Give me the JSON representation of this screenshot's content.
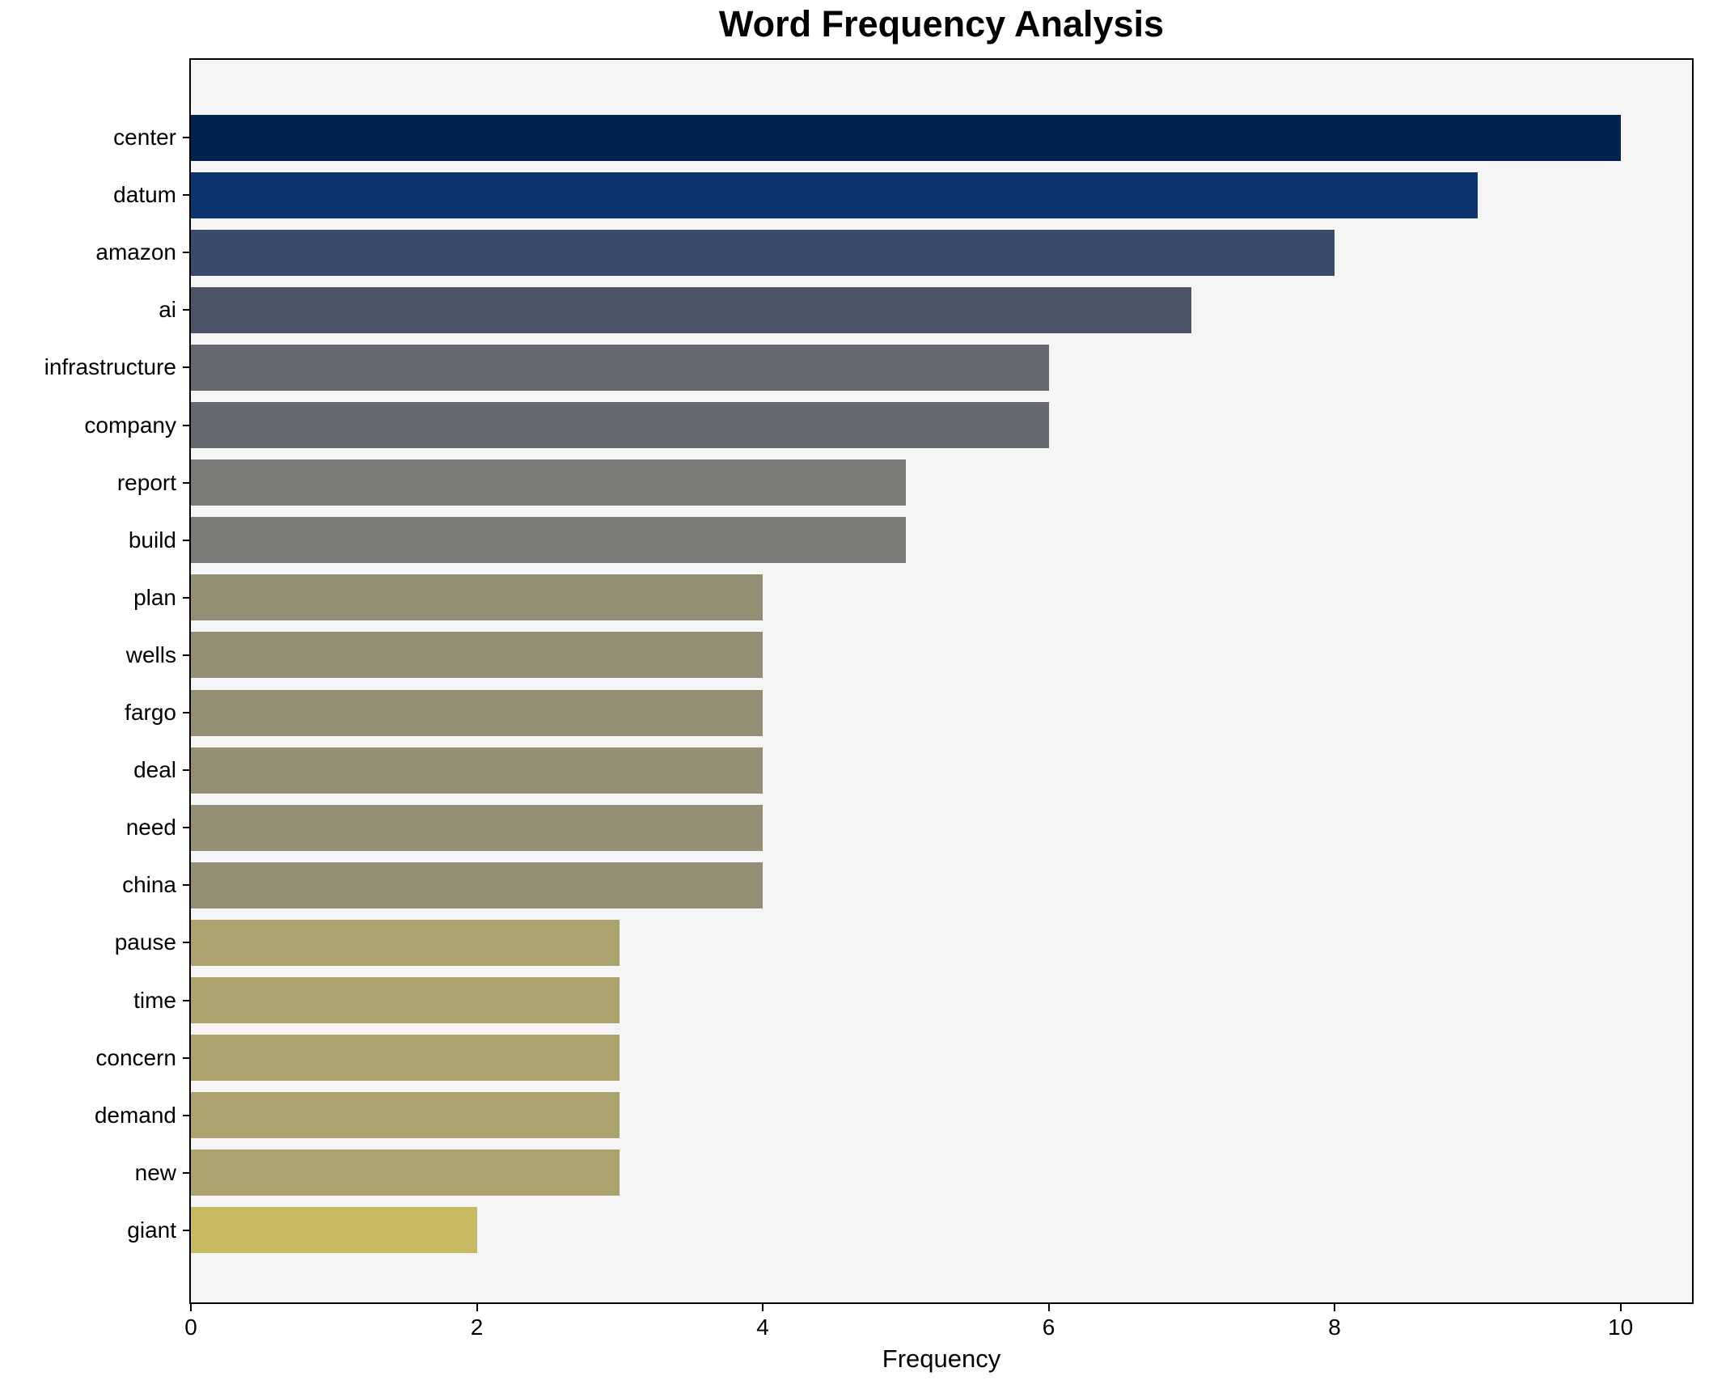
{
  "chart_data": {
    "type": "bar",
    "orientation": "horizontal",
    "title": "Word Frequency Analysis",
    "xlabel": "Frequency",
    "ylabel": "",
    "categories": [
      "center",
      "datum",
      "amazon",
      "ai",
      "infrastructure",
      "company",
      "report",
      "build",
      "plan",
      "wells",
      "fargo",
      "deal",
      "need",
      "china",
      "pause",
      "time",
      "concern",
      "demand",
      "new",
      "giant"
    ],
    "values": [
      10,
      9,
      8,
      7,
      6,
      6,
      5,
      5,
      4,
      4,
      4,
      4,
      4,
      4,
      3,
      3,
      3,
      3,
      3,
      2
    ],
    "bar_colors": [
      "#00234e",
      "#0c346e",
      "#394a6d",
      "#4c5568",
      "#65686f",
      "#65686f",
      "#7a7a77",
      "#7a7a77",
      "#948e75",
      "#948e75",
      "#948e75",
      "#948e75",
      "#948e75",
      "#948e75",
      "#aca26d",
      "#aca26d",
      "#aca26d",
      "#aca26d",
      "#aca26d",
      "#c8b963"
    ],
    "xticks": [
      0,
      2,
      4,
      6,
      8,
      10
    ],
    "xlim": [
      0,
      10.5
    ],
    "grid": false,
    "legend": null,
    "plot_background": "#f6f5f6",
    "spine_color": "#000000",
    "text_color": "#000000"
  }
}
